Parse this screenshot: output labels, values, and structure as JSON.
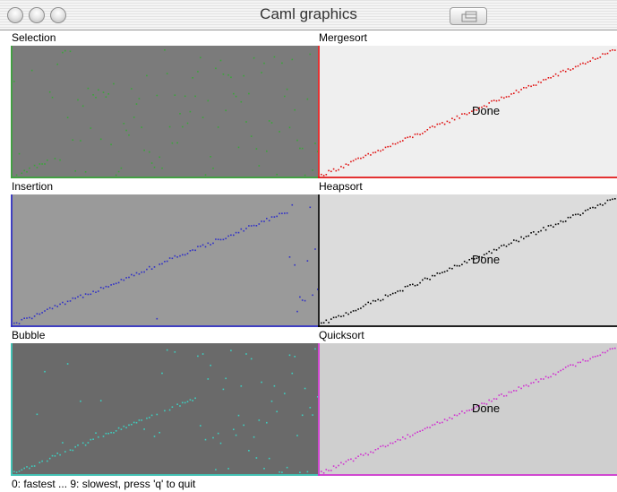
{
  "window": {
    "title": "Caml graphics"
  },
  "panels": [
    {
      "name": "Selection",
      "bg": "#7b7b7b",
      "color": "#3aa63a",
      "done": "",
      "progress": 0.15,
      "scatter": 0.9
    },
    {
      "name": "Mergesort",
      "bg": "#efefef",
      "color": "#e01010",
      "done": "Done",
      "progress": 1.0,
      "scatter": 0.0
    },
    {
      "name": "Insertion",
      "bg": "#9a9a9a",
      "color": "#3030c8",
      "done": "",
      "progress": 0.9,
      "scatter": 0.05
    },
    {
      "name": "Heapsort",
      "bg": "#dcdcdc",
      "color": "#000000",
      "done": "Done",
      "progress": 1.0,
      "scatter": 0.0
    },
    {
      "name": "Bubble",
      "bg": "#6a6a6a",
      "color": "#3ccfc0",
      "done": "",
      "progress": 0.6,
      "scatter": 0.5
    },
    {
      "name": "Quicksort",
      "bg": "#cfcfcf",
      "color": "#d030d0",
      "done": "Done",
      "progress": 1.0,
      "scatter": 0.0
    }
  ],
  "status": {
    "hint": "0: fastest ... 9: slowest, press 'q' to quit"
  },
  "colors": {
    "window_bg": "#ffffff",
    "titlebar": "#efefef"
  }
}
